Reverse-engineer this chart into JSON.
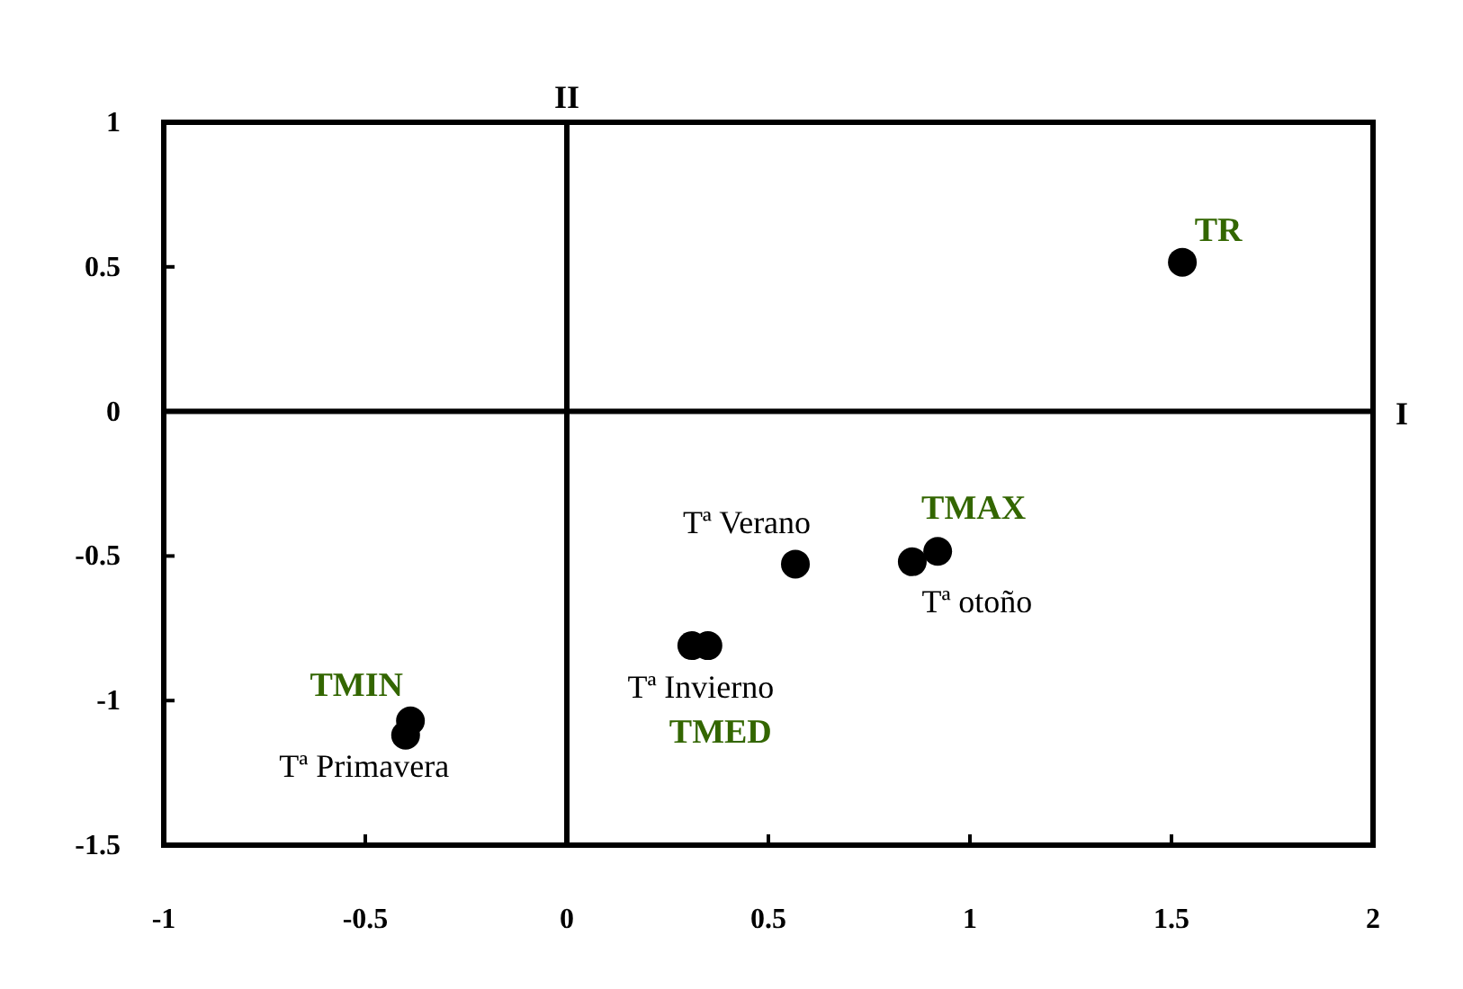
{
  "chart_data": {
    "type": "scatter",
    "series": [
      {
        "color": "#000000",
        "x": [
          1.527,
          0.92,
          0.857,
          0.567,
          0.31,
          0.35,
          -0.388,
          -0.4
        ],
        "values": [
          0.516,
          -0.484,
          -0.52,
          -0.528,
          -0.81,
          -0.81,
          -1.07,
          -1.12
        ]
      }
    ],
    "xlim": [
      -1,
      2
    ],
    "xticks": [
      -1,
      -0.5,
      0,
      0.5,
      1,
      1.5,
      2
    ],
    "ylim": [
      -1.5,
      1
    ],
    "yticks": [
      -1.5,
      -1,
      -0.5,
      0,
      0.5,
      1
    ],
    "marker": "circle",
    "grid": false,
    "ref_lines": [
      {
        "axis": "y",
        "value": 0,
        "label": "I"
      },
      {
        "axis": "x",
        "value": 0,
        "label": "II"
      }
    ],
    "annotations": [
      {
        "text": "TR",
        "x": 1.527,
        "y": 0.516
      },
      {
        "text": "TMAX",
        "x": 0.92,
        "y": -0.484
      },
      {
        "text": "TMIN",
        "x": -0.388,
        "y": -1.07
      },
      {
        "text": "TMED",
        "x": 0.35,
        "y": -0.81
      },
      {
        "text": "Tª Verano",
        "x": 0.567,
        "y": -0.528
      },
      {
        "text": "Tª otoño",
        "x": 0.857,
        "y": -0.52
      },
      {
        "text": "Tª Invierno",
        "x": 0.31,
        "y": -0.81
      },
      {
        "text": "Tª Primavera",
        "x": -0.4,
        "y": -1.12
      }
    ]
  }
}
